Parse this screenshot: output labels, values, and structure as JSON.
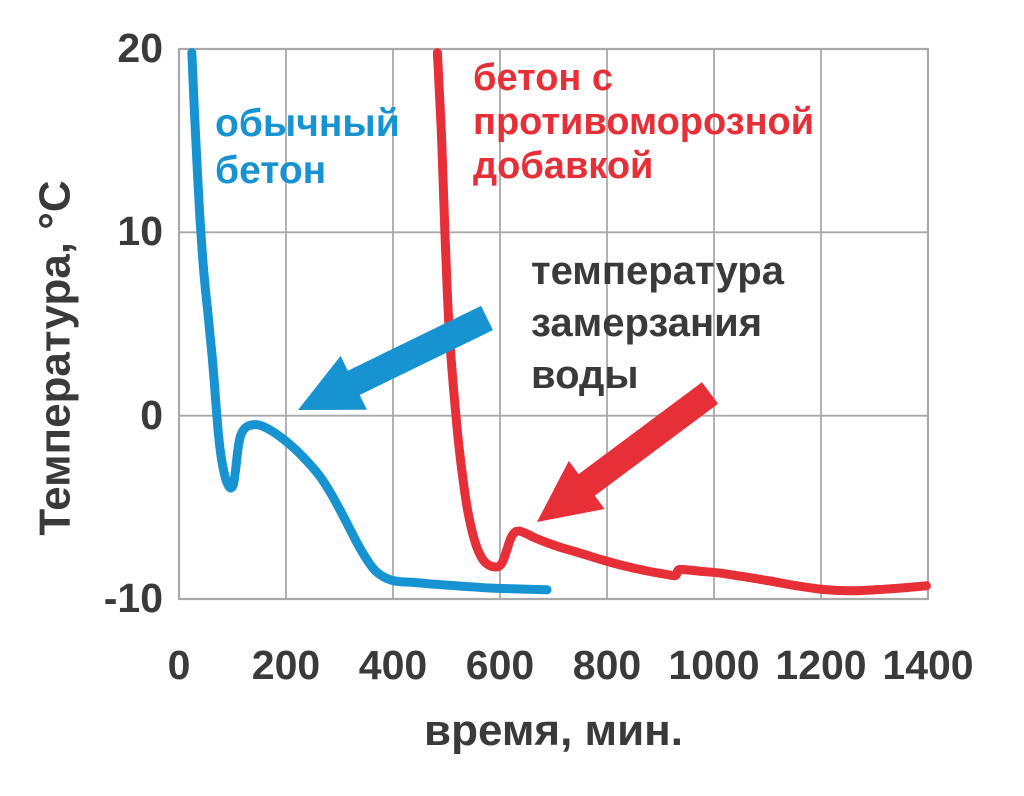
{
  "figure": {
    "background": "#ffffff",
    "text_color": "#3a3a3a",
    "grid_color": "#a9a9a9"
  },
  "chart_data": {
    "type": "line",
    "title": "",
    "xlabel": "время, мин.",
    "ylabel": "Температура, °С",
    "xlim": [
      0,
      1400
    ],
    "ylim": [
      -10,
      20
    ],
    "grid": true,
    "x_ticks": [
      "0",
      "200",
      "400",
      "600",
      "800",
      "1000",
      "1200",
      "1400"
    ],
    "y_ticks": [
      "20",
      "10",
      "0",
      "-10"
    ],
    "series": [
      {
        "name": "обычный бетон",
        "color": "#1793d2",
        "label_lines": [
          "обычный",
          "бетон"
        ],
        "points": [
          [
            24,
            19.8
          ],
          [
            29,
            16.5
          ],
          [
            34,
            13.5
          ],
          [
            39,
            10.8
          ],
          [
            44,
            8.7
          ],
          [
            49,
            7.0
          ],
          [
            54,
            5.6
          ],
          [
            58,
            4.4
          ],
          [
            62,
            3.2
          ],
          [
            66,
            1.8
          ],
          [
            70,
            0.3
          ],
          [
            74,
            -1.1
          ],
          [
            79,
            -2.3
          ],
          [
            85,
            -3.2
          ],
          [
            91,
            -3.75
          ],
          [
            97,
            -3.95
          ],
          [
            102,
            -3.7
          ],
          [
            106,
            -2.9
          ],
          [
            110,
            -1.9
          ],
          [
            114,
            -1.2
          ],
          [
            120,
            -0.8
          ],
          [
            130,
            -0.55
          ],
          [
            148,
            -0.5
          ],
          [
            165,
            -0.7
          ],
          [
            182,
            -1.0
          ],
          [
            200,
            -1.4
          ],
          [
            218,
            -1.85
          ],
          [
            235,
            -2.35
          ],
          [
            252,
            -2.9
          ],
          [
            268,
            -3.5
          ],
          [
            285,
            -4.3
          ],
          [
            302,
            -5.2
          ],
          [
            318,
            -6.1
          ],
          [
            334,
            -7.0
          ],
          [
            350,
            -7.8
          ],
          [
            365,
            -8.4
          ],
          [
            380,
            -8.75
          ],
          [
            395,
            -8.95
          ],
          [
            412,
            -9.05
          ],
          [
            440,
            -9.1
          ],
          [
            480,
            -9.2
          ],
          [
            530,
            -9.3
          ],
          [
            580,
            -9.4
          ],
          [
            630,
            -9.45
          ],
          [
            688,
            -9.5
          ]
        ]
      },
      {
        "name": "бетон с противоморозной добавкой",
        "color": "#e72f38",
        "label_lines": [
          "бетон с",
          "противоморозной",
          "добавкой"
        ],
        "points": [
          [
            483,
            19.8
          ],
          [
            487,
            17.5
          ],
          [
            491,
            15.0
          ],
          [
            494,
            12.5
          ],
          [
            497,
            10.0
          ],
          [
            500,
            7.8
          ],
          [
            503,
            5.8
          ],
          [
            507,
            3.8
          ],
          [
            512,
            1.9
          ],
          [
            517,
            0.2
          ],
          [
            523,
            -1.6
          ],
          [
            530,
            -3.3
          ],
          [
            538,
            -4.9
          ],
          [
            547,
            -6.2
          ],
          [
            557,
            -7.2
          ],
          [
            568,
            -7.85
          ],
          [
            579,
            -8.15
          ],
          [
            590,
            -8.25
          ],
          [
            599,
            -8.2
          ],
          [
            606,
            -7.9
          ],
          [
            613,
            -7.3
          ],
          [
            620,
            -6.7
          ],
          [
            628,
            -6.35
          ],
          [
            637,
            -6.3
          ],
          [
            650,
            -6.45
          ],
          [
            668,
            -6.7
          ],
          [
            690,
            -6.95
          ],
          [
            715,
            -7.2
          ],
          [
            750,
            -7.5
          ],
          [
            795,
            -7.9
          ],
          [
            840,
            -8.25
          ],
          [
            880,
            -8.5
          ],
          [
            910,
            -8.65
          ],
          [
            928,
            -8.72
          ],
          [
            934,
            -8.4
          ],
          [
            952,
            -8.42
          ],
          [
            980,
            -8.5
          ],
          [
            1015,
            -8.6
          ],
          [
            1055,
            -8.78
          ],
          [
            1105,
            -9.02
          ],
          [
            1155,
            -9.28
          ],
          [
            1205,
            -9.48
          ],
          [
            1252,
            -9.55
          ],
          [
            1300,
            -9.5
          ],
          [
            1350,
            -9.4
          ],
          [
            1397,
            -9.28
          ]
        ]
      }
    ],
    "annotation": {
      "lines": [
        "температура",
        "замерзания",
        "воды"
      ],
      "color": "#3a3a3a",
      "arrows": [
        {
          "color": "#1793d2",
          "tail": [
            487,
            318
          ],
          "tip": [
            298,
            410
          ],
          "shaft_width": 27,
          "head_length": 62,
          "head_width": 60
        },
        {
          "color": "#e72f38",
          "tail": [
            710,
            393
          ],
          "tip": [
            537,
            522
          ],
          "shaft_width": 27,
          "head_length": 62,
          "head_width": 60
        }
      ]
    }
  }
}
